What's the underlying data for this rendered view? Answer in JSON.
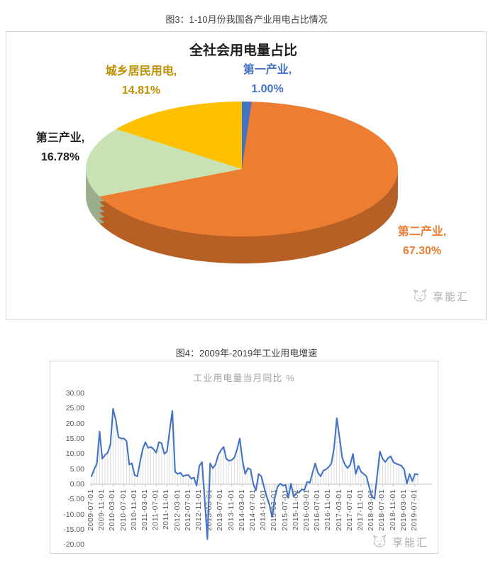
{
  "figure3": {
    "caption": "图3：1-10月份我国各产业用电占比情况",
    "watermark": "享能汇"
  },
  "figure4": {
    "caption": "图4：2009年-2019年工业用电增速",
    "watermark": "享能汇"
  },
  "chart_data": [
    {
      "type": "pie",
      "title": "全社会用电量占比",
      "effect": "3d",
      "start_angle_deg": 0,
      "direction": "clockwise",
      "slices": [
        {
          "name": "第一产业",
          "value": 1.0,
          "line1": "第一产业,",
          "line2": "1.00%",
          "color": "#4472C4",
          "label_color": "#4472C4"
        },
        {
          "name": "第二产业",
          "value": 67.3,
          "line1": "第二产业,",
          "line2": "67.30%",
          "color": "#ED7D31",
          "label_color": "#ED7D31"
        },
        {
          "name": "第三产业",
          "value": 16.78,
          "line1": "第三产业,",
          "line2": "16.78%",
          "color": "#C9E2B4",
          "label_color": "#1f1f1f"
        },
        {
          "name": "城乡居民用电",
          "value": 14.81,
          "line1": "城乡居民用电,",
          "line2": "14.81%",
          "color": "#FFC000",
          "label_color": "#BF9000"
        }
      ]
    },
    {
      "type": "line",
      "title": "工业用电量当月同比 %",
      "line_color": "#4472C4",
      "grid": "monthly vertical drop lines between each point and the zero axis; no horizontal gridlines",
      "ylim": [
        -20,
        30
      ],
      "y_tick_labels": [
        "30.00",
        "25.00",
        "20.00",
        "15.00",
        "10.00",
        "5.00",
        "0.00",
        "-5.00",
        "-10.00",
        "-15.00",
        "-20.00"
      ],
      "x_range": {
        "start": "2009-07",
        "end": "2019-08",
        "step": "monthly"
      },
      "x_tick_labels": [
        "2009-07-01",
        "2009-11-01",
        "2010-03-01",
        "2010-07-01",
        "2010-11-01",
        "2011-03-01",
        "2011-07-01",
        "2011-11-01",
        "2012-03-01",
        "2012-07-01",
        "2012-11-01",
        "2013-03-01",
        "2013-07-01",
        "2013-11-01",
        "2014-03-01",
        "2014-07-01",
        "2014-11-01",
        "2015-03-01",
        "2015-07-01",
        "2015-11-01",
        "2016-03-01",
        "2016-07-01",
        "2016-11-01",
        "2017-03-01",
        "2017-07-01",
        "2017-11-01",
        "2018-03-01",
        "2018-07-01",
        "2018-11-01",
        "2019-03-01",
        "2019-07-01"
      ],
      "values": [
        2.6,
        4.9,
        6.9,
        17.4,
        8.4,
        9.6,
        10.4,
        13.0,
        24.9,
        21.3,
        15.5,
        15.1,
        15.1,
        14.3,
        6.5,
        6.9,
        3.0,
        2.6,
        7.3,
        11.6,
        13.9,
        12.0,
        12.3,
        11.6,
        10.4,
        13.9,
        13.5,
        10.0,
        10.8,
        17.8,
        24.2,
        4.1,
        3.4,
        3.8,
        2.6,
        3.0,
        3.0,
        1.8,
        2.2,
        -0.5,
        6.1,
        7.3,
        -5.2,
        -18.1,
        6.9,
        5.3,
        6.5,
        9.6,
        11.2,
        12.3,
        8.4,
        7.7,
        8.0,
        8.8,
        11.5,
        15.1,
        8.0,
        3.4,
        5.3,
        4.9,
        0.2,
        -2.1,
        3.4,
        2.6,
        -0.9,
        -4.1,
        -6.8,
        -10.8,
        -4.5,
        -0.9,
        0.2,
        -0.5,
        -0.2,
        -4.5,
        0.2,
        -4.1,
        -2.9,
        -2.7,
        -1.7,
        -1.9,
        0.8,
        0.5,
        3.8,
        6.9,
        3.8,
        2.6,
        4.5,
        4.9,
        5.7,
        6.9,
        12.0,
        21.8,
        15.5,
        8.8,
        6.5,
        5.3,
        6.5,
        10.0,
        3.4,
        6.1,
        4.1,
        3.4,
        2.6,
        -0.9,
        -4.1,
        -4.8,
        3.0,
        10.8,
        8.4,
        7.3,
        8.6,
        9.2,
        7.3,
        6.8,
        6.5,
        6.1,
        4.9,
        0.2,
        3.4,
        1.0,
        3.4,
        3.2
      ]
    }
  ]
}
